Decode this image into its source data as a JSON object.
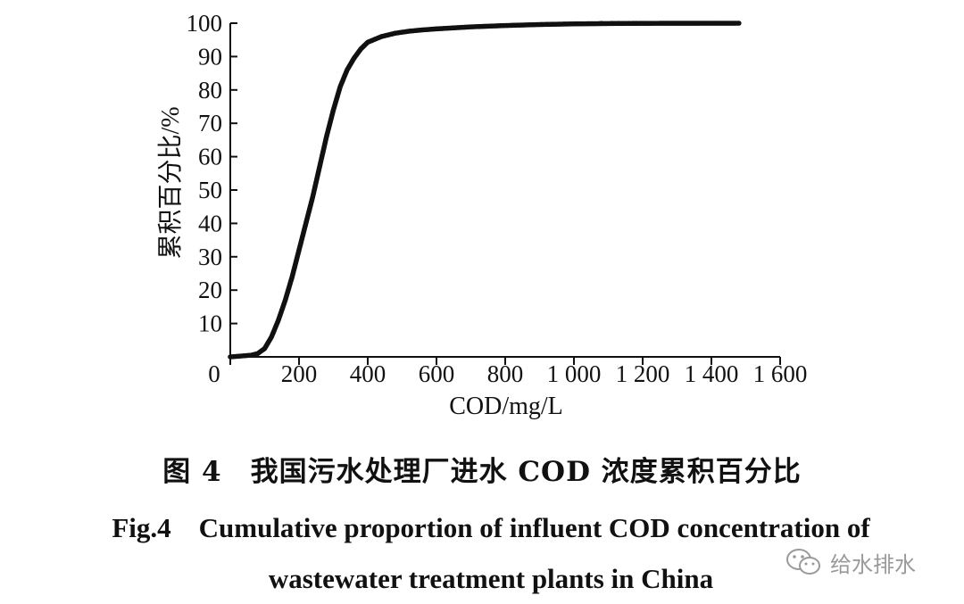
{
  "chart_data": {
    "type": "scatter",
    "xlabel": "COD/mg/L",
    "ylabel": "累积百分比/%",
    "xlim": [
      0,
      1600
    ],
    "ylim": [
      0,
      100
    ],
    "x_ticks": [
      0,
      200,
      400,
      600,
      800,
      1000,
      1200,
      1400,
      1600
    ],
    "x_tick_labels": [
      "0",
      "200",
      "400",
      "600",
      "800",
      "1 000",
      "1 200",
      "1 400",
      "1 600"
    ],
    "y_ticks": [
      0,
      10,
      20,
      30,
      40,
      50,
      60,
      70,
      80,
      90,
      100
    ],
    "y_tick_labels": [
      "",
      "10",
      "20",
      "30",
      "40",
      "50",
      "60",
      "70",
      "80",
      "90",
      "100"
    ],
    "grid": false,
    "series": [
      {
        "color": "#111111",
        "points": [
          [
            0,
            0
          ],
          [
            60,
            0.5
          ],
          [
            80,
            1.0
          ],
          [
            100,
            2.5
          ],
          [
            120,
            6
          ],
          [
            140,
            11
          ],
          [
            160,
            17
          ],
          [
            180,
            24
          ],
          [
            200,
            32
          ],
          [
            220,
            40
          ],
          [
            240,
            48
          ],
          [
            260,
            57
          ],
          [
            280,
            66
          ],
          [
            300,
            74
          ],
          [
            320,
            81
          ],
          [
            340,
            86
          ],
          [
            360,
            89.5
          ],
          [
            380,
            92.3
          ],
          [
            400,
            94.3
          ],
          [
            440,
            96.0
          ],
          [
            480,
            97.0
          ],
          [
            520,
            97.6
          ],
          [
            560,
            98.0
          ],
          [
            600,
            98.3
          ],
          [
            650,
            98.6
          ],
          [
            700,
            98.9
          ],
          [
            750,
            99.1
          ],
          [
            800,
            99.3
          ],
          [
            850,
            99.45
          ],
          [
            900,
            99.6
          ],
          [
            950,
            99.7
          ],
          [
            1000,
            99.8
          ],
          [
            1050,
            99.85
          ],
          [
            1100,
            99.9
          ],
          [
            1150,
            99.93
          ],
          [
            1200,
            99.95
          ],
          [
            1250,
            99.97
          ],
          [
            1400,
            99.98
          ],
          [
            1450,
            99.99
          ],
          [
            1480,
            100
          ]
        ],
        "outliers": [
          1080,
          1110,
          1130,
          1160,
          1180,
          1195,
          1205,
          1270,
          1390,
          1410,
          1420,
          1435,
          1480
        ]
      }
    ]
  },
  "caption": {
    "cn": "图 4　我国污水处理厂进水 COD 浓度累积百分比",
    "en_line1": "Fig.4　Cumulative proportion of influent COD concentration of",
    "en_line2": "wastewater treatment plants in China"
  },
  "watermark": {
    "text": "给水排水",
    "icon": "wechat-icon"
  }
}
